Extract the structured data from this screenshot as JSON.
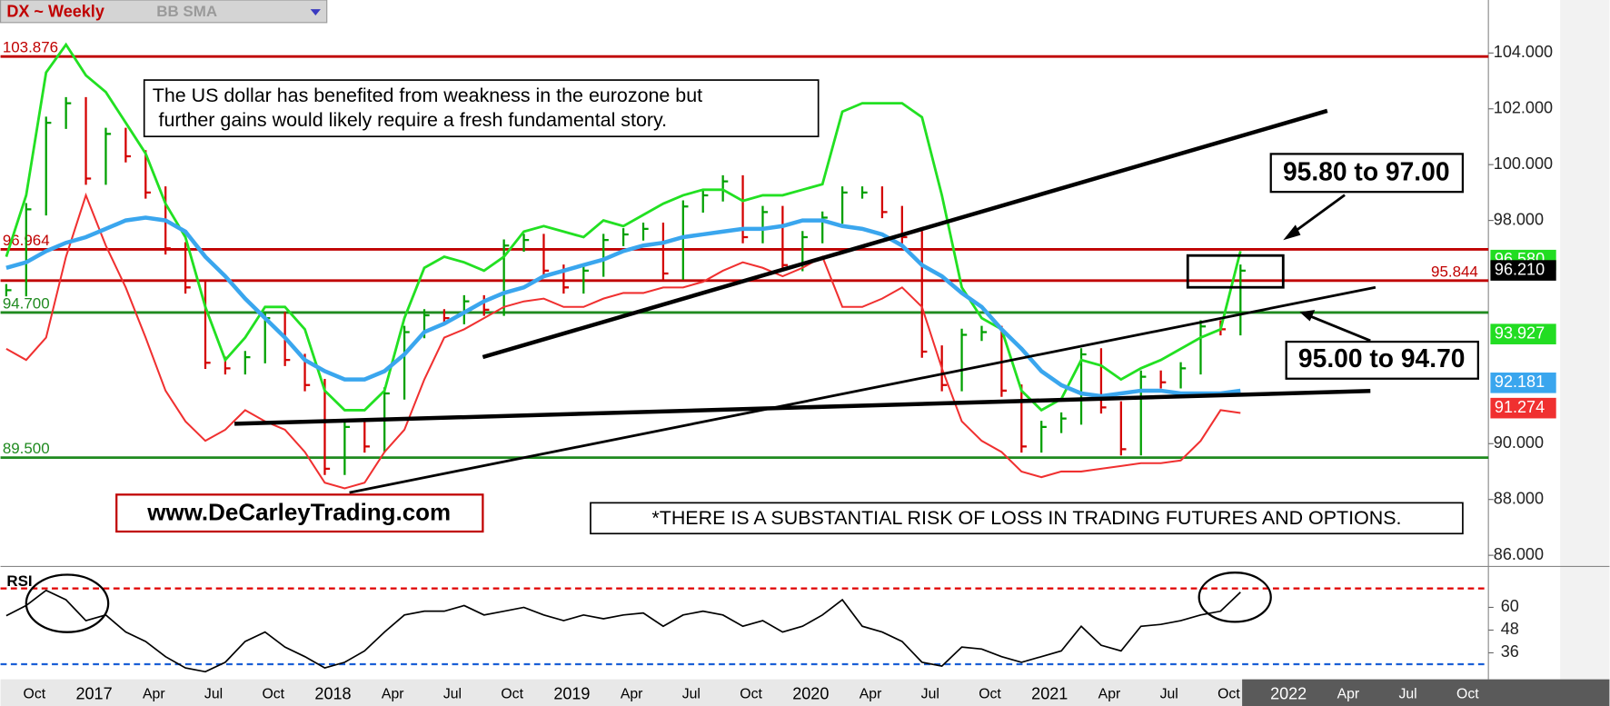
{
  "chart_data": [
    {
      "type": "line",
      "title": "DX ~ Weekly",
      "subtitle": "BB SMA",
      "categories": [
        null,
        "Oct",
        null,
        null,
        "2017",
        null,
        null,
        "Apr",
        null,
        null,
        "Jul",
        null,
        null,
        "Oct",
        null,
        null,
        "2018",
        null,
        null,
        "Apr",
        null,
        null,
        "Jul",
        null,
        null,
        "Oct",
        null,
        null,
        "2019",
        null,
        null,
        "Apr",
        null,
        null,
        "Jul",
        null,
        null,
        "Oct",
        null,
        null,
        "2020",
        null,
        null,
        "Apr",
        null,
        null,
        "Jul",
        null,
        null,
        "Oct",
        null,
        null,
        "2021",
        null,
        null,
        "Apr",
        null,
        null,
        "Jul",
        null,
        null,
        "Oct",
        null,
        null,
        "2022",
        null,
        null,
        "Apr",
        null,
        null,
        "Jul",
        null,
        null,
        "Oct",
        null,
        null
      ],
      "ylim": [
        85.6,
        105.9
      ],
      "yticks": [
        {
          "value": 86,
          "label": "86.000"
        },
        {
          "value": 88,
          "label": "88.000"
        },
        {
          "value": 90,
          "label": "90.000"
        },
        {
          "value": 98,
          "label": "98.000"
        },
        {
          "value": 100,
          "label": "100.000"
        },
        {
          "value": 102,
          "label": "102.000"
        },
        {
          "value": 104,
          "label": "104.000"
        }
      ],
      "series": [
        {
          "style": "bars",
          "up_color": "#00a000",
          "down_color": "#d40000",
          "values": [
            95.5,
            98.4,
            101.5,
            102.2,
            99.5,
            101.1,
            100.3,
            99.0,
            97.0,
            95.6,
            92.9,
            92.7,
            93.1,
            94.5,
            93.0,
            92.1,
            89.1,
            90.6,
            89.9,
            91.8,
            94.0,
            94.6,
            94.5,
            95.1,
            94.8,
            97.1,
            97.3,
            96.2,
            95.6,
            96.2,
            97.3,
            97.5,
            97.7,
            96.1,
            98.5,
            98.9,
            99.4,
            97.4,
            98.3,
            96.4,
            97.4,
            98.1,
            99.0,
            99.0,
            98.3,
            97.4,
            93.3,
            92.1,
            93.9,
            94.0,
            91.9,
            89.9,
            90.6,
            90.9,
            93.2,
            91.3,
            89.8,
            92.4,
            92.2,
            92.7,
            94.2,
            94.1,
            96.2,
            null,
            null,
            null,
            null,
            null,
            null,
            null,
            null,
            null,
            null,
            null,
            null,
            null
          ]
        },
        {
          "style": "line",
          "color": "#22e022",
          "width": 2.5,
          "values": [
            96.7,
            98.9,
            103.3,
            104.3,
            103.2,
            102.6,
            101.5,
            100.4,
            98.6,
            97.4,
            94.9,
            93.0,
            93.8,
            94.9,
            94.9,
            94.1,
            91.9,
            91.2,
            91.2,
            91.9,
            94.5,
            96.3,
            96.7,
            96.5,
            96.2,
            96.7,
            97.6,
            97.8,
            97.6,
            97.4,
            98.0,
            97.8,
            98.2,
            98.6,
            98.9,
            99.1,
            99.1,
            98.7,
            98.9,
            98.9,
            99.1,
            99.3,
            101.9,
            102.2,
            102.2,
            102.2,
            101.7,
            98.9,
            95.6,
            94.5,
            94.1,
            91.9,
            91.2,
            91.6,
            93.0,
            92.8,
            92.3,
            92.7,
            93.0,
            93.4,
            93.8,
            94.1,
            96.9,
            null,
            null,
            null,
            null,
            null,
            null,
            null,
            null,
            null,
            null,
            null,
            null,
            null
          ]
        },
        {
          "style": "line",
          "color": "#f03030",
          "width": 1.8,
          "values": [
            93.4,
            93.0,
            93.8,
            96.7,
            98.9,
            97.1,
            95.6,
            93.8,
            91.9,
            90.8,
            90.1,
            90.5,
            91.2,
            90.8,
            90.5,
            89.7,
            88.6,
            88.4,
            88.6,
            89.7,
            90.5,
            92.3,
            93.8,
            94.1,
            94.5,
            94.9,
            95.1,
            95.2,
            94.9,
            94.9,
            95.2,
            95.4,
            95.4,
            95.6,
            95.6,
            95.8,
            96.2,
            96.5,
            96.3,
            96.0,
            96.3,
            96.7,
            94.9,
            94.9,
            95.2,
            95.6,
            94.9,
            92.7,
            90.8,
            90.1,
            89.7,
            89.0,
            88.8,
            89.0,
            89.0,
            89.1,
            89.2,
            89.3,
            89.3,
            89.4,
            90.1,
            91.2,
            91.1,
            null,
            null,
            null,
            null,
            null,
            null,
            null,
            null,
            null,
            null,
            null,
            null,
            null
          ]
        },
        {
          "style": "line",
          "color": "#3aa6ee",
          "width": 4,
          "values": [
            96.3,
            96.5,
            96.9,
            97.2,
            97.4,
            97.7,
            98.0,
            98.1,
            98.0,
            97.6,
            96.7,
            96.0,
            95.2,
            94.5,
            93.8,
            93.0,
            92.6,
            92.3,
            92.3,
            92.6,
            93.2,
            94.0,
            94.3,
            94.7,
            95.1,
            95.4,
            95.6,
            96.0,
            96.2,
            96.4,
            96.6,
            96.9,
            97.1,
            97.2,
            97.4,
            97.5,
            97.6,
            97.7,
            97.7,
            97.8,
            98.0,
            98.0,
            97.8,
            97.7,
            97.5,
            97.1,
            96.4,
            96.0,
            95.4,
            94.9,
            94.1,
            93.4,
            92.6,
            92.1,
            91.8,
            91.7,
            91.8,
            91.9,
            91.9,
            91.8,
            91.8,
            91.8,
            91.9,
            null,
            null,
            null,
            null,
            null,
            null,
            null,
            null,
            null,
            null,
            null,
            null,
            null
          ]
        }
      ],
      "levels": [
        {
          "value": 103.876,
          "label": "103.876",
          "color": "#c00000",
          "side": "left"
        },
        {
          "value": 96.964,
          "label": "96.964",
          "color": "#c00000",
          "side": "left"
        },
        {
          "value": 95.844,
          "label": "95.844",
          "color": "#c00000",
          "side": "right"
        },
        {
          "value": 94.7,
          "label": "94.700",
          "color": "#1f8a1f",
          "side": "left"
        },
        {
          "value": 89.5,
          "label": "89.500",
          "color": "#1f8a1f",
          "side": "left"
        }
      ],
      "last_values": [
        {
          "value": 96.58,
          "label": "96.580",
          "color": "#22dd22"
        },
        {
          "value": 96.21,
          "label": "96.210",
          "color": "#000000"
        },
        {
          "value": 93.927,
          "label": "93.927",
          "color": "#22dd22"
        },
        {
          "value": 92.181,
          "label": "92.181",
          "color": "#3aa6ee"
        },
        {
          "value": 91.274,
          "label": "91.274",
          "color": "#f03030"
        }
      ],
      "annotations": [
        "The US dollar has benefited from weakness in the eurozone but",
        "further gains would likely require a fresh fundamental story.",
        "95.80 to 97.00",
        "95.00 to 94.70",
        "www.DeCarleyTrading.com",
        "*THERE IS A SUBSTANTIAL RISK OF LOSS IN TRADING FUTURES AND OPTIONS."
      ]
    },
    {
      "type": "line",
      "title": "RSI",
      "color": "#000000",
      "ylim": [
        22,
        80
      ],
      "yticks": [
        36,
        48,
        60
      ],
      "values": [
        55.6,
        61,
        69,
        64,
        53,
        56,
        47,
        42,
        34,
        28,
        26,
        31,
        42,
        47,
        39,
        34,
        28,
        31,
        37,
        47,
        56,
        58,
        58,
        61,
        56,
        58,
        60,
        56,
        53,
        56,
        54,
        56,
        57,
        50,
        56,
        58,
        56,
        50,
        53,
        47,
        50,
        56,
        64,
        50,
        47,
        42,
        31,
        29,
        39,
        38,
        34,
        31,
        34,
        37,
        50,
        40,
        37,
        50,
        51,
        53,
        56,
        58,
        68,
        null,
        null,
        null,
        null,
        null,
        null,
        null,
        null,
        null,
        null,
        null,
        null,
        null
      ],
      "levels": [
        {
          "value": 70,
          "color": "#e00000"
        },
        {
          "value": 30,
          "color": "#1a5fd6"
        }
      ]
    }
  ]
}
